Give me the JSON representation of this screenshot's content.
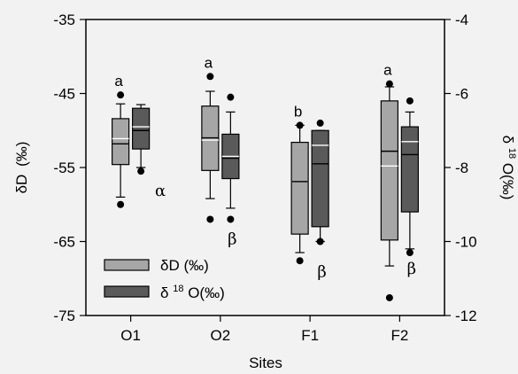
{
  "chart_data": {
    "type": "box",
    "xlabel": "Sites",
    "categories": [
      "O1",
      "O2",
      "F1",
      "F2"
    ],
    "left_axis": {
      "label_main": "δD",
      "label_unit": "(‰)",
      "ylim": [
        -75,
        -35
      ],
      "ticks": [
        -35,
        -45,
        -55,
        -65,
        -75
      ],
      "tick_labels": [
        "-35",
        "-45",
        "-55",
        "-65",
        "-75"
      ]
    },
    "right_axis": {
      "label_delta": "δ",
      "label_sup": "18",
      "label_rest": "O(‰)",
      "ylim": [
        -12,
        -4
      ],
      "ticks": [
        -4,
        -6,
        -8,
        -10,
        -12
      ],
      "tick_labels": [
        "-4",
        "-6",
        "-8",
        "-10",
        "-12"
      ]
    },
    "series": [
      {
        "name": "δD (‰)",
        "axis": "left",
        "color": "#a6a6a6",
        "boxes": [
          {
            "q1": -54.6,
            "median": -51.8,
            "mean": -51.1,
            "q3": -48.4,
            "whisker_low": -59.0,
            "whisker_high": -46.4,
            "outliers": [
              -45.2,
              -60.0
            ]
          },
          {
            "q1": -55.4,
            "median": -51.0,
            "mean": -51.3,
            "q3": -46.7,
            "whisker_low": -59.2,
            "whisker_high": -44.7,
            "outliers": [
              -42.7,
              -62.0
            ]
          },
          {
            "q1": -64.0,
            "median": -56.9,
            "mean": -56.9,
            "q3": -51.6,
            "whisker_low": -66.5,
            "whisker_high": -49.3,
            "outliers": [
              -49.3,
              -67.6
            ]
          },
          {
            "q1": -64.8,
            "median": -52.8,
            "mean": -54.8,
            "q3": -46.0,
            "whisker_low": -68.3,
            "whisker_high": -44.1,
            "outliers": [
              -43.7,
              -72.6
            ]
          }
        ]
      },
      {
        "name": "δ18O(‰)",
        "axis": "right",
        "color": "#5a5a5a",
        "boxes": [
          {
            "q1": -7.5,
            "median": -7.0,
            "mean": -6.9,
            "q3": -6.4,
            "whisker_low": -8.0,
            "whisker_high": -6.3,
            "outliers": [
              -8.1
            ]
          },
          {
            "q1": -8.3,
            "median": -7.75,
            "mean": -7.7,
            "q3": -7.1,
            "whisker_low": -9.1,
            "whisker_high": -6.5,
            "outliers": [
              -6.1,
              -9.4
            ]
          },
          {
            "q1": -9.6,
            "median": -7.9,
            "mean": -7.4,
            "q3": -7.0,
            "whisker_low": -10.0,
            "whisker_high": -7.0,
            "outliers": [
              -6.8,
              -10.0
            ]
          },
          {
            "q1": -9.2,
            "median": -7.65,
            "mean": -7.3,
            "q3": -6.9,
            "whisker_low": -10.2,
            "whisker_high": -6.5,
            "outliers": [
              -6.2,
              -10.3
            ]
          }
        ]
      }
    ],
    "significance_letters": [
      "a",
      "a",
      "b",
      "a"
    ],
    "significance_greek": [
      "α",
      "β",
      "β",
      "β"
    ],
    "legend": {
      "position": "bottom-left",
      "entries": [
        {
          "main": "δD (‰)"
        },
        {
          "delta": "δ",
          "sup": "18",
          "rest": "O(‰)"
        }
      ]
    },
    "grid": false
  }
}
